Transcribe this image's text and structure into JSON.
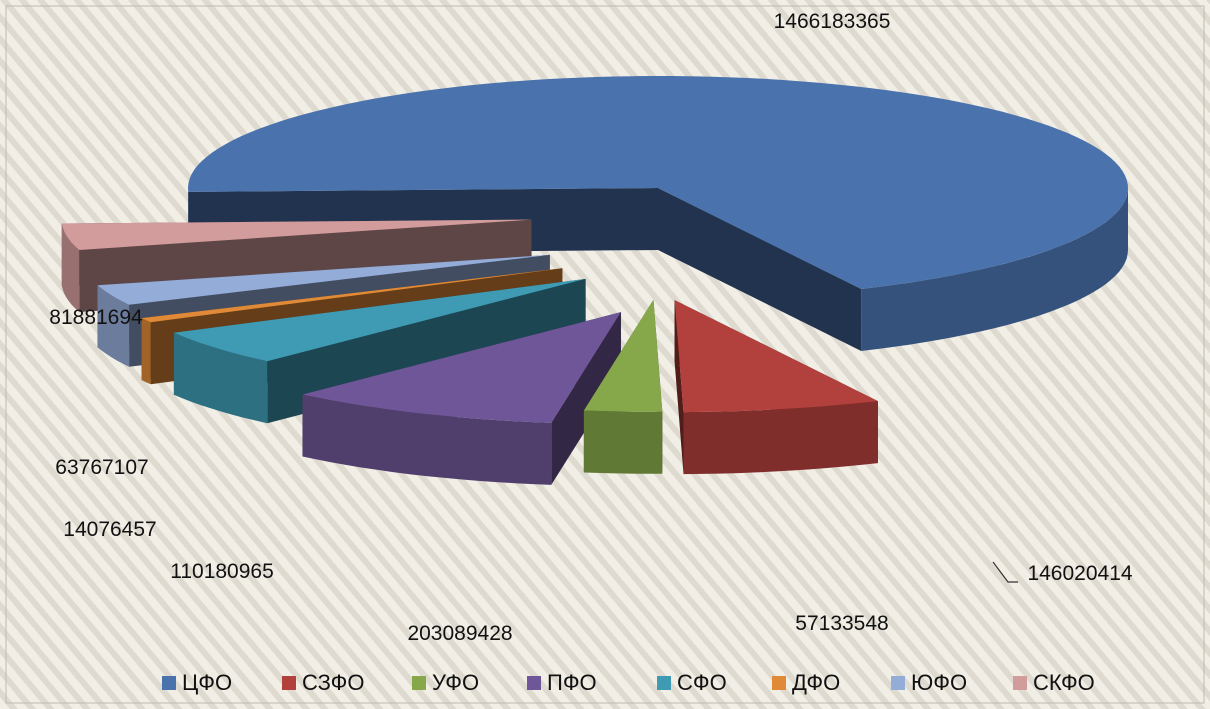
{
  "chart_data": {
    "type": "pie",
    "categories": [
      "ЦФО",
      "СЗФО",
      "УФО",
      "ПФО",
      "СФО",
      "ДФО",
      "ЮФО",
      "СКФО"
    ],
    "values": [
      1466183365,
      146020414,
      57133548,
      203089428,
      110180965,
      14076457,
      63767107,
      81881694
    ],
    "colors": [
      "#4a72ad",
      "#b2403c",
      "#86a84a",
      "#6f5698",
      "#3f9bb4",
      "#e08a37",
      "#94acd8",
      "#d39c9c"
    ],
    "legend_position": "bottom"
  }
}
